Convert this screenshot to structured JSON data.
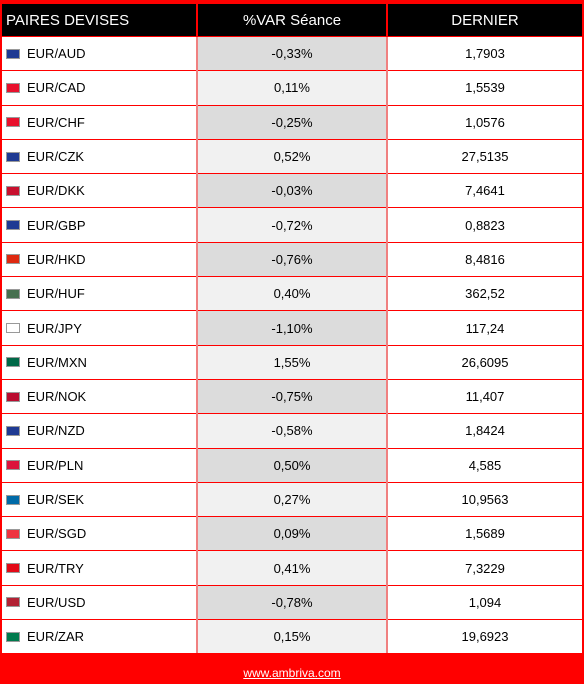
{
  "header": {
    "pair_label": "PAIRES DEVISES",
    "var_label": "%VAR Séance",
    "last_label": "DERNIER"
  },
  "rows": [
    {
      "pair": "EUR/AUD",
      "var": "-0,33%",
      "last": "1,7903",
      "flag": "au-flag-icon",
      "flag_color": "#1f3a93"
    },
    {
      "pair": "EUR/CAD",
      "var": "0,11%",
      "last": "1,5539",
      "flag": "ca-flag-icon",
      "flag_color": "#e8112d"
    },
    {
      "pair": "EUR/CHF",
      "var": "-0,25%",
      "last": "1,0576",
      "flag": "ch-flag-icon",
      "flag_color": "#e8112d"
    },
    {
      "pair": "EUR/CZK",
      "var": "0,52%",
      "last": "27,5135",
      "flag": "cz-flag-icon",
      "flag_color": "#1f3a93"
    },
    {
      "pair": "EUR/DKK",
      "var": "-0,03%",
      "last": "7,4641",
      "flag": "dk-flag-icon",
      "flag_color": "#c8102e"
    },
    {
      "pair": "EUR/GBP",
      "var": "-0,72%",
      "last": "0,8823",
      "flag": "gb-flag-icon",
      "flag_color": "#1f3a93"
    },
    {
      "pair": "EUR/HKD",
      "var": "-0,76%",
      "last": "8,4816",
      "flag": "hk-flag-icon",
      "flag_color": "#de2910"
    },
    {
      "pair": "EUR/HUF",
      "var": "0,40%",
      "last": "362,52",
      "flag": "hu-flag-icon",
      "flag_color": "#477050"
    },
    {
      "pair": "EUR/JPY",
      "var": "-1,10%",
      "last": "117,24",
      "flag": "jp-flag-icon",
      "flag_color": "#ffffff"
    },
    {
      "pair": "EUR/MXN",
      "var": "1,55%",
      "last": "26,6095",
      "flag": "mx-flag-icon",
      "flag_color": "#006847"
    },
    {
      "pair": "EUR/NOK",
      "var": "-0,75%",
      "last": "11,407",
      "flag": "no-flag-icon",
      "flag_color": "#ba0c2f"
    },
    {
      "pair": "EUR/NZD",
      "var": "-0,58%",
      "last": "1,8424",
      "flag": "nz-flag-icon",
      "flag_color": "#1f3a93"
    },
    {
      "pair": "EUR/PLN",
      "var": "0,50%",
      "last": "4,585",
      "flag": "pl-flag-icon",
      "flag_color": "#dc143c"
    },
    {
      "pair": "EUR/SEK",
      "var": "0,27%",
      "last": "10,9563",
      "flag": "se-flag-icon",
      "flag_color": "#006aa7"
    },
    {
      "pair": "EUR/SGD",
      "var": "0,09%",
      "last": "1,5689",
      "flag": "sg-flag-icon",
      "flag_color": "#ef3340"
    },
    {
      "pair": "EUR/TRY",
      "var": "0,41%",
      "last": "7,3229",
      "flag": "tr-flag-icon",
      "flag_color": "#e30a17"
    },
    {
      "pair": "EUR/USD",
      "var": "-0,78%",
      "last": "1,094",
      "flag": "us-flag-icon",
      "flag_color": "#b22234"
    },
    {
      "pair": "EUR/ZAR",
      "var": "0,15%",
      "last": "19,6923",
      "flag": "za-flag-icon",
      "flag_color": "#007a4d"
    }
  ],
  "footer": {
    "link_text": "www.ambriva.com"
  },
  "colors": {
    "frame": "#ff0000",
    "header_bg": "#000000",
    "var_cell_bg": "#e6e6e6"
  }
}
